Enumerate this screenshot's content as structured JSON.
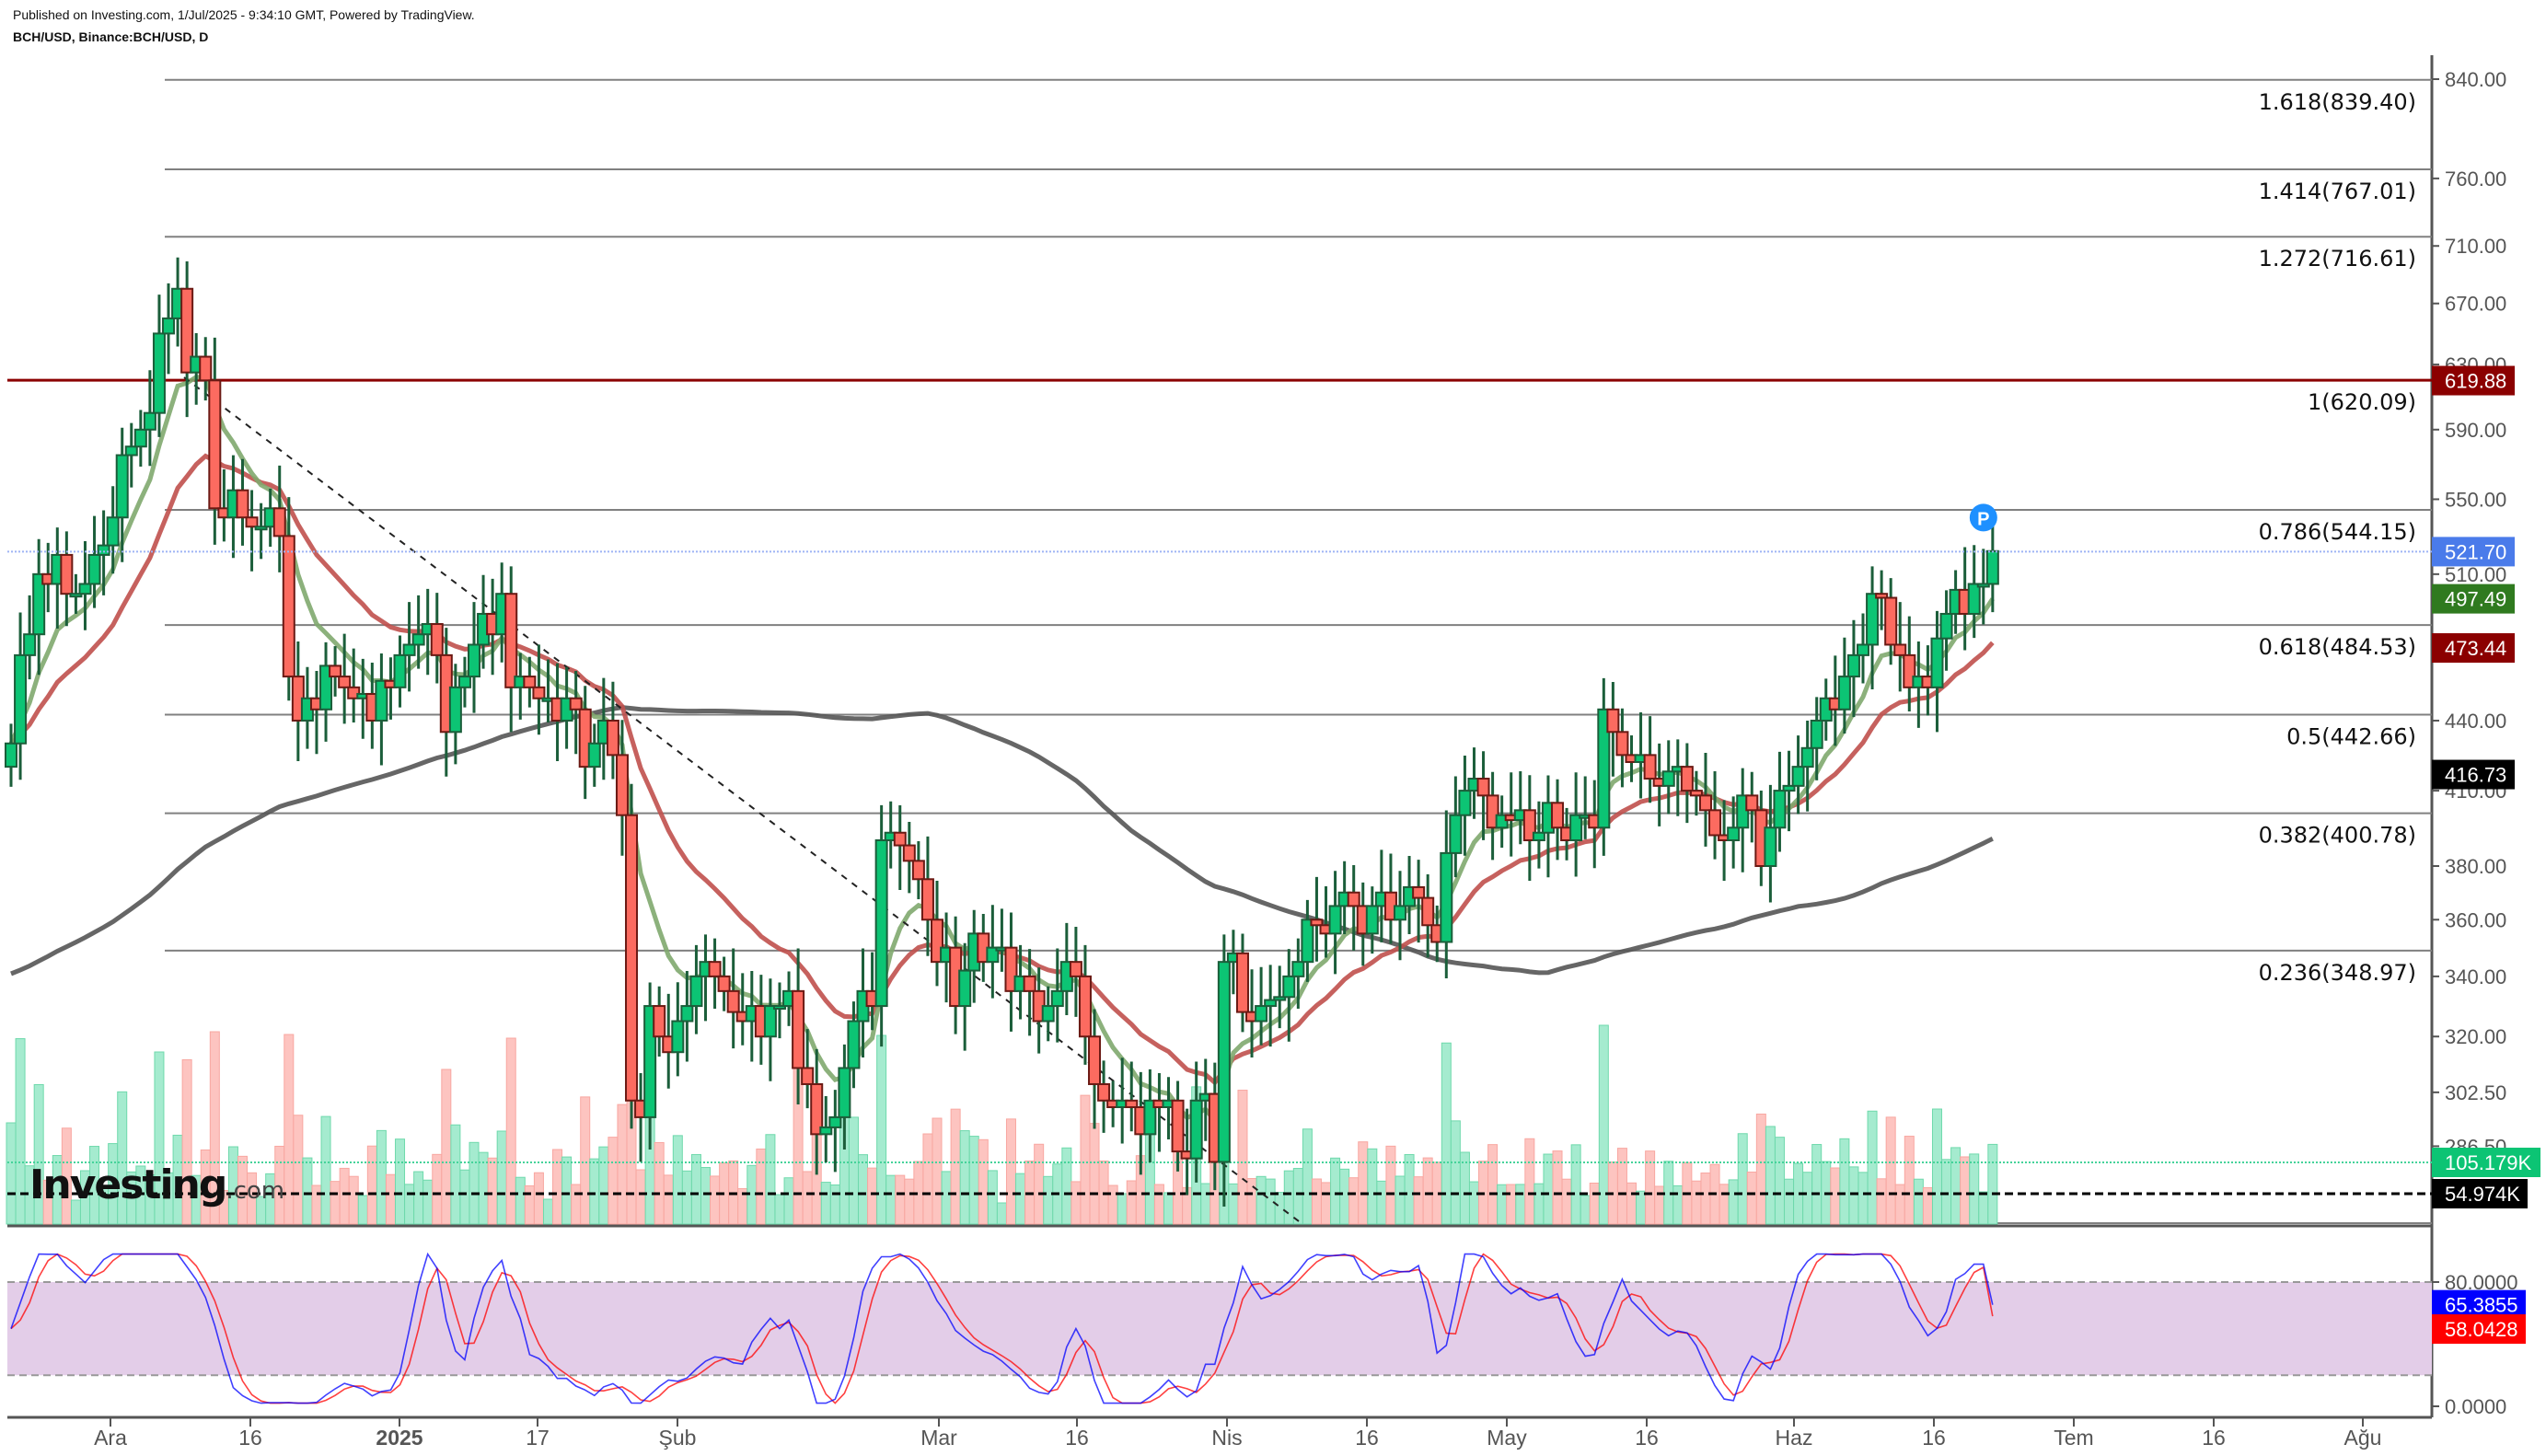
{
  "header": {
    "published": "Published on Investing.com, 1/Jul/2025 - 9:34:10 GMT, Powered by TradingView.",
    "symbol": "BCH/USD, Binance:BCH/USD, D"
  },
  "logo": {
    "main": "Investing",
    "suffix": ".com"
  },
  "colors": {
    "up": "#0cc474",
    "down": "#fc6b60",
    "up_border": "#1b5e3a",
    "down_border": "#6b1a14",
    "ema_fast": "#7fa86e",
    "ema_mid": "#c0504d",
    "ma_slow": "#555555",
    "fib_line": "#808080",
    "fib_one": "#8b0000",
    "stoch_k": "#3b3bff",
    "stoch_d": "#ff3333",
    "stoch_band": "#e3cde8",
    "vol_up": "#a5ebcf",
    "vol_down": "#fdc4c0"
  },
  "chart_data": {
    "type": "candlestick",
    "title": "BCH/USD, Binance:BCH/USD, D",
    "xlabel": "",
    "ylabel": "",
    "y_scale": "log",
    "y_ticks": [
      840.0,
      760.0,
      710.0,
      670.0,
      630.0,
      590.0,
      550.0,
      510.0,
      440.0,
      410.0,
      380.0,
      360.0,
      340.0,
      320.0,
      302.5,
      286.5
    ],
    "x_ticks": [
      {
        "label": "Ara",
        "bold": false
      },
      {
        "label": "16",
        "bold": false
      },
      {
        "label": "2025",
        "bold": true
      },
      {
        "label": "17",
        "bold": false
      },
      {
        "label": "Şub",
        "bold": false
      },
      {
        "label": "Mar",
        "bold": false
      },
      {
        "label": "16",
        "bold": false
      },
      {
        "label": "Nis",
        "bold": false
      },
      {
        "label": "16",
        "bold": false
      },
      {
        "label": "May",
        "bold": false
      },
      {
        "label": "16",
        "bold": false
      },
      {
        "label": "Haz",
        "bold": false
      },
      {
        "label": "16",
        "bold": false
      },
      {
        "label": "Tem",
        "bold": false
      },
      {
        "label": "16",
        "bold": false
      },
      {
        "label": "Ağu",
        "bold": false
      }
    ],
    "fibonacci": [
      {
        "label": "1.618(839.40)",
        "level": 1.618,
        "price": 839.4
      },
      {
        "label": "1.414(767.01)",
        "level": 1.414,
        "price": 767.01
      },
      {
        "label": "1.272(716.61)",
        "level": 1.272,
        "price": 716.61
      },
      {
        "label": "1(620.09)",
        "level": 1,
        "price": 620.09
      },
      {
        "label": "0.786(544.15)",
        "level": 0.786,
        "price": 544.15
      },
      {
        "label": "0.618(484.53)",
        "level": 0.618,
        "price": 484.53
      },
      {
        "label": "0.5(442.66)",
        "level": 0.5,
        "price": 442.66
      },
      {
        "label": "0.382(400.78)",
        "level": 0.382,
        "price": 400.78
      },
      {
        "label": "0.236(348.97)",
        "level": 0.236,
        "price": 348.97
      }
    ],
    "price_tags": [
      {
        "label": "619.88",
        "price": 619.88,
        "color": "#8b0000",
        "meaning": "resistance line"
      },
      {
        "label": "521.70",
        "price": 521.7,
        "color": "#4a7bea",
        "meaning": "last price"
      },
      {
        "label": "497.49",
        "price": 497.49,
        "color": "#2f7a1f",
        "meaning": "fast EMA"
      },
      {
        "label": "473.44",
        "price": 473.44,
        "color": "#8b0000",
        "meaning": "mid EMA"
      },
      {
        "label": "416.73",
        "price": 416.73,
        "color": "#000000",
        "meaning": "slow MA"
      }
    ],
    "volume_tags": [
      {
        "label": "105.179K",
        "color": "#0cc474"
      },
      {
        "label": "54.974K",
        "color": "#000000"
      }
    ],
    "stochastic": {
      "y_ticks": [
        "80.0000",
        "0.0000"
      ],
      "band": [
        20,
        80
      ],
      "k_last": "65.3855",
      "d_last": "58.0428",
      "k_color": "#0000ff",
      "d_color": "#ff0000"
    },
    "approx_closes": {
      "start": "2024-11-25",
      "note": "daily closes estimated from candle bodies",
      "values": [
        430,
        470,
        480,
        510,
        505,
        520,
        500,
        500,
        505,
        520,
        525,
        540,
        575,
        580,
        590,
        600,
        650,
        660,
        680,
        625,
        635,
        620,
        545,
        540,
        555,
        540,
        535,
        535,
        545,
        530,
        460,
        440,
        450,
        445,
        465,
        460,
        455,
        450,
        452,
        440,
        458,
        455,
        470,
        475,
        480,
        485,
        470,
        435,
        455,
        460,
        475,
        490,
        480,
        500,
        455,
        460,
        455,
        450,
        450,
        440,
        450,
        445,
        420,
        430,
        440,
        425,
        400,
        300,
        295,
        330,
        320,
        315,
        325,
        330,
        340,
        345,
        340,
        335,
        328,
        325,
        330,
        320,
        330,
        330,
        335,
        310,
        305,
        290,
        292,
        295,
        310,
        325,
        335,
        330,
        390,
        393,
        388,
        382,
        375,
        360,
        345,
        350,
        330,
        342,
        355,
        345,
        350,
        350,
        335,
        340,
        335,
        325,
        330,
        335,
        345,
        340,
        320,
        305,
        300,
        298,
        300,
        298,
        290,
        300,
        298,
        300,
        285,
        283,
        300,
        302,
        282,
        345,
        348,
        328,
        325,
        330,
        332,
        333,
        340,
        345,
        360,
        358,
        355,
        365,
        370,
        365,
        355,
        365,
        370,
        360,
        365,
        372,
        368,
        358,
        352,
        385,
        400,
        410,
        415,
        408,
        395,
        400,
        398,
        402,
        390,
        393,
        405,
        395,
        390,
        400,
        400,
        395,
        445,
        435,
        425,
        422,
        425,
        415,
        412,
        418,
        420,
        410,
        408,
        402,
        392,
        390,
        395,
        408,
        402,
        380,
        395,
        410,
        412,
        420,
        428,
        440,
        450,
        445,
        460,
        470,
        475,
        500,
        498,
        475,
        470,
        455,
        460,
        455,
        478,
        490,
        502,
        490,
        505,
        505,
        522
      ]
    }
  },
  "marker": {
    "label": "P",
    "color": "#1e90ff"
  }
}
